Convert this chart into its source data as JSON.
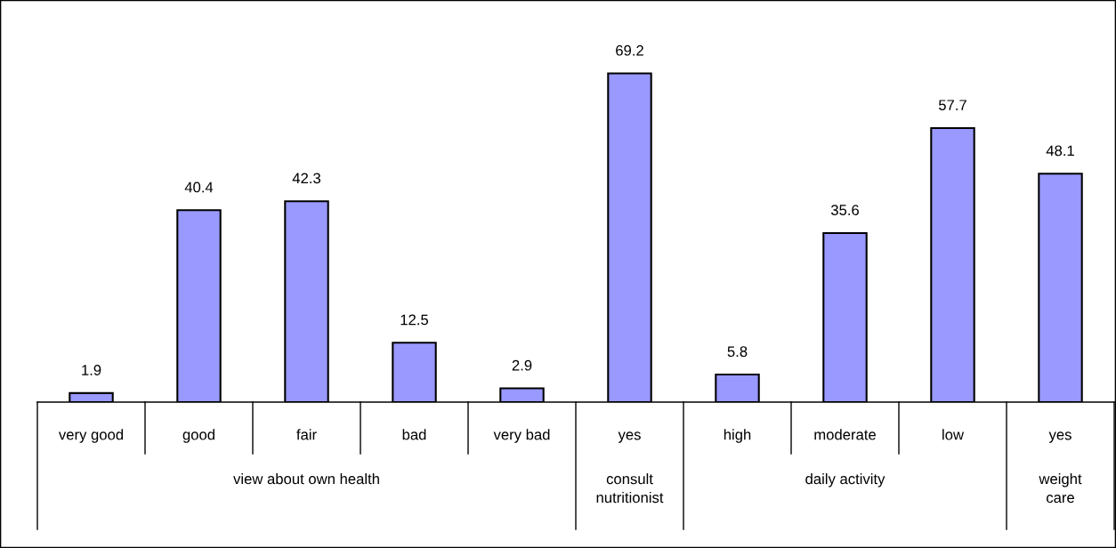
{
  "chart_data": {
    "type": "bar",
    "categories": [
      "very good",
      "good",
      "fair",
      "bad",
      "very bad",
      "yes",
      "high",
      "moderate",
      "low",
      "yes"
    ],
    "values": [
      1.9,
      40.4,
      42.3,
      12.5,
      2.9,
      69.2,
      5.8,
      35.6,
      57.7,
      48.1
    ],
    "color": "#9999ff",
    "data_labels": true,
    "annotations": [
      "view about own health",
      "consult nutritionist",
      "daily activity",
      "weight care"
    ]
  }
}
